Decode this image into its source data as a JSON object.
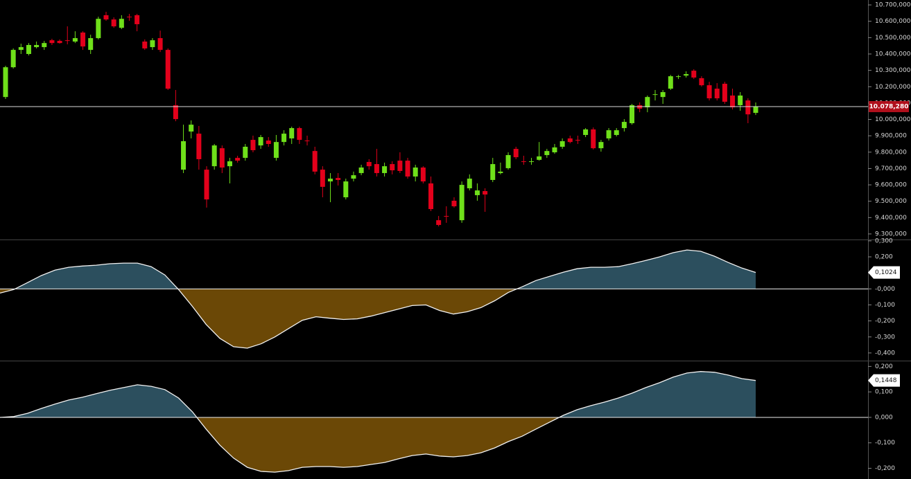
{
  "chart_data": [
    {
      "type": "candlestick",
      "up_color": "#6fe01a",
      "down_color": "#e3001b",
      "ylim": [
        9266,
        10730
      ],
      "yticks": [
        {
          "value": 10700,
          "label": "10.700,000"
        },
        {
          "value": 10600,
          "label": "10.600,000"
        },
        {
          "value": 10500,
          "label": "10.500,000"
        },
        {
          "value": 10400,
          "label": "10.400,000"
        },
        {
          "value": 10300,
          "label": "10.300,000"
        },
        {
          "value": 10200,
          "label": "10.200,000"
        },
        {
          "value": 10100,
          "label": "10.100,000"
        },
        {
          "value": 10000,
          "label": "10.000,000"
        },
        {
          "value": 9900,
          "label": "9.900,000"
        },
        {
          "value": 9800,
          "label": "9.800,000"
        },
        {
          "value": 9700,
          "label": "9.700,000"
        },
        {
          "value": 9600,
          "label": "9.600,000"
        },
        {
          "value": 9500,
          "label": "9.500,000"
        },
        {
          "value": 9400,
          "label": "9.400,000"
        },
        {
          "value": 9300,
          "label": "9.300,000"
        }
      ],
      "last_price_label": "10.078,280",
      "open": [
        10137,
        10319,
        10425,
        10400,
        10442,
        10442,
        10484,
        10480,
        10484,
        10476,
        10531,
        10425,
        10497,
        10637,
        10611,
        10560,
        10628,
        10637,
        10476,
        10442,
        10497,
        10425,
        10087,
        9693,
        9926,
        9913,
        9693,
        9714,
        9824,
        9714,
        9765,
        9765,
        9875,
        9841,
        9871,
        9765,
        9862,
        9884,
        9947,
        9871,
        9807,
        9693,
        9621,
        9642,
        9524,
        9638,
        9672,
        9740,
        9727,
        9672,
        9727,
        9748,
        9748,
        9651,
        9706,
        9609,
        9384,
        9410,
        9503,
        9384,
        9579,
        9537,
        9562,
        9630,
        9672,
        9702,
        9820,
        9744,
        9740,
        9753,
        9782,
        9799,
        9833,
        9884,
        9875,
        9905,
        9939,
        9824,
        9884,
        9905,
        9947,
        9977,
        10087,
        10074,
        10150,
        10137,
        10188,
        10260,
        10268,
        10298,
        10252,
        10209,
        10188,
        10218,
        10146,
        10087,
        10116,
        10040
      ],
      "high": [
        10328,
        10434,
        10463,
        10467,
        10476,
        10480,
        10493,
        10489,
        10569,
        10539,
        10539,
        10518,
        10628,
        10658,
        10624,
        10637,
        10645,
        10645,
        10489,
        10497,
        10543,
        10434,
        10180,
        9968,
        9994,
        9960,
        9714,
        9850,
        9841,
        9765,
        9778,
        9850,
        9901,
        9905,
        9892,
        9905,
        9934,
        9956,
        9956,
        9901,
        9833,
        9714,
        9672,
        9672,
        9638,
        9681,
        9723,
        9757,
        9820,
        9736,
        9744,
        9799,
        9765,
        9723,
        9714,
        9651,
        9410,
        9469,
        9524,
        9621,
        9664,
        9609,
        9579,
        9765,
        9736,
        9799,
        9833,
        9778,
        9765,
        9862,
        9820,
        9850,
        9884,
        9901,
        9901,
        9947,
        9951,
        9875,
        9947,
        9947,
        10002,
        10095,
        10104,
        10146,
        10180,
        10180,
        10272,
        10272,
        10294,
        10307,
        10264,
        10230,
        10222,
        10230,
        10188,
        10167,
        10129,
        10104
      ],
      "low": [
        10125,
        10311,
        10400,
        10391,
        10434,
        10425,
        10455,
        10463,
        10459,
        10467,
        10425,
        10400,
        10489,
        10603,
        10560,
        10552,
        10603,
        10539,
        10425,
        10425,
        10412,
        10180,
        9989,
        9672,
        9884,
        9693,
        9461,
        9693,
        9672,
        9609,
        9736,
        9748,
        9799,
        9820,
        9833,
        9748,
        9841,
        9850,
        9850,
        9841,
        9664,
        9524,
        9494,
        9596,
        9511,
        9621,
        9659,
        9693,
        9651,
        9651,
        9664,
        9672,
        9638,
        9621,
        9609,
        9440,
        9346,
        9368,
        9461,
        9368,
        9566,
        9503,
        9435,
        9617,
        9664,
        9693,
        9757,
        9723,
        9723,
        9748,
        9765,
        9790,
        9820,
        9854,
        9850,
        9892,
        9816,
        9803,
        9871,
        9896,
        9926,
        9968,
        10044,
        10044,
        10116,
        10095,
        10180,
        10247,
        10256,
        10247,
        10201,
        10116,
        10116,
        10095,
        10061,
        10053,
        9977,
        10027
      ],
      "close": [
        10319,
        10425,
        10442,
        10455,
        10455,
        10467,
        10467,
        10467,
        10481,
        10497,
        10446,
        10497,
        10615,
        10611,
        10569,
        10615,
        10626,
        10582,
        10434,
        10484,
        10425,
        10188,
        10002,
        9867,
        9968,
        9757,
        9511,
        9841,
        9706,
        9744,
        9748,
        9833,
        9812,
        9892,
        9850,
        9862,
        9913,
        9947,
        9875,
        9867,
        9681,
        9588,
        9638,
        9630,
        9621,
        9659,
        9706,
        9714,
        9672,
        9714,
        9689,
        9685,
        9651,
        9706,
        9621,
        9452,
        9355,
        9406,
        9469,
        9600,
        9638,
        9566,
        9541,
        9727,
        9681,
        9782,
        9769,
        9740,
        9744,
        9774,
        9807,
        9829,
        9867,
        9862,
        9871,
        9939,
        9824,
        9862,
        9934,
        9934,
        9985,
        10087,
        10066,
        10137,
        10154,
        10167,
        10264,
        10264,
        10277,
        10256,
        10209,
        10129,
        10129,
        10108,
        10074,
        10146,
        10031,
        10078.28
      ]
    },
    {
      "type": "area",
      "pos_color": "#2c4f5e",
      "neg_color": "#6b4806",
      "ylim": [
        -0.448,
        0.304
      ],
      "yticks": [
        {
          "value": 0.3,
          "label": "0,300"
        },
        {
          "value": 0.2,
          "label": "0,200"
        },
        {
          "value": 0.1,
          "label": "0,100"
        },
        {
          "value": 0,
          "label": "-0,000"
        },
        {
          "value": -0.1,
          "label": "-0,100"
        },
        {
          "value": -0.2,
          "label": "-0,200"
        },
        {
          "value": -0.3,
          "label": "-0,300"
        },
        {
          "value": -0.4,
          "label": "-0,400"
        }
      ],
      "last_value_label": "0,1024",
      "values": [
        -0.026,
        -0.004,
        0.039,
        0.083,
        0.117,
        0.135,
        0.143,
        0.148,
        0.157,
        0.161,
        0.161,
        0.139,
        0.087,
        -0.004,
        -0.109,
        -0.222,
        -0.309,
        -0.361,
        -0.37,
        -0.343,
        -0.3,
        -0.248,
        -0.196,
        -0.174,
        -0.183,
        -0.191,
        -0.187,
        -0.17,
        -0.148,
        -0.126,
        -0.104,
        -0.1,
        -0.135,
        -0.157,
        -0.143,
        -0.117,
        -0.074,
        -0.022,
        0.013,
        0.052,
        0.078,
        0.104,
        0.126,
        0.135,
        0.135,
        0.139,
        0.157,
        0.178,
        0.2,
        0.226,
        0.243,
        0.235,
        0.204,
        0.165,
        0.13,
        0.1024
      ]
    },
    {
      "type": "area",
      "pos_color": "#2c4f5e",
      "neg_color": "#6b4806",
      "ylim": [
        -0.242,
        0.22
      ],
      "yticks": [
        {
          "value": 0.2,
          "label": "0,200"
        },
        {
          "value": 0.1,
          "label": "0,100"
        },
        {
          "value": 0,
          "label": "0,000"
        },
        {
          "value": -0.1,
          "label": "-0,100"
        },
        {
          "value": -0.2,
          "label": "-0,200"
        }
      ],
      "last_value_label": "0,1448",
      "values": [
        0,
        0.003,
        0.016,
        0.035,
        0.052,
        0.068,
        0.079,
        0.093,
        0.106,
        0.117,
        0.128,
        0.122,
        0.109,
        0.076,
        0.022,
        -0.046,
        -0.109,
        -0.16,
        -0.196,
        -0.212,
        -0.215,
        -0.209,
        -0.196,
        -0.193,
        -0.193,
        -0.196,
        -0.193,
        -0.185,
        -0.177,
        -0.163,
        -0.15,
        -0.144,
        -0.152,
        -0.155,
        -0.15,
        -0.139,
        -0.12,
        -0.095,
        -0.074,
        -0.046,
        -0.019,
        0.008,
        0.03,
        0.046,
        0.06,
        0.076,
        0.095,
        0.117,
        0.136,
        0.158,
        0.174,
        0.18,
        0.177,
        0.166,
        0.152,
        0.1448
      ]
    }
  ]
}
